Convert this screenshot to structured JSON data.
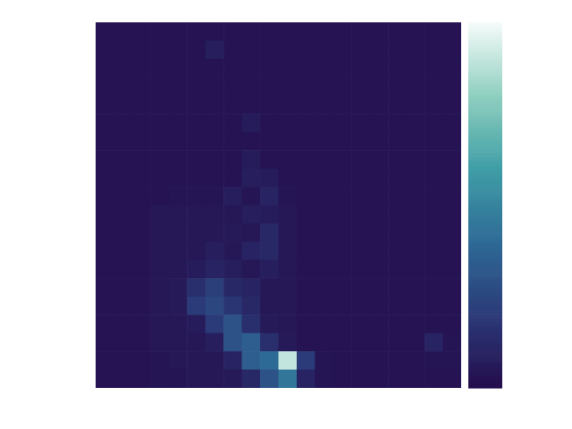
{
  "chart_data": {
    "type": "heatmap",
    "tick_labels": false,
    "xlim": [
      0,
      20
    ],
    "ylim": [
      0,
      20
    ],
    "colorbar": {
      "range": [
        0,
        1
      ]
    },
    "cells": [
      [
        0.03,
        0.03,
        0.03,
        0.03,
        0.03,
        0.03,
        0.03,
        0.03,
        0.03,
        0.03,
        0.03,
        0.03,
        0.03,
        0.03,
        0.03,
        0.03,
        0.03,
        0.03,
        0.03,
        0.03
      ],
      [
        0.03,
        0.03,
        0.03,
        0.03,
        0.03,
        0.03,
        0.08,
        0.03,
        0.03,
        0.03,
        0.03,
        0.03,
        0.03,
        0.03,
        0.03,
        0.03,
        0.03,
        0.03,
        0.03,
        0.03
      ],
      [
        0.03,
        0.03,
        0.03,
        0.03,
        0.03,
        0.03,
        0.03,
        0.03,
        0.03,
        0.03,
        0.03,
        0.03,
        0.03,
        0.03,
        0.03,
        0.03,
        0.03,
        0.03,
        0.03,
        0.03
      ],
      [
        0.03,
        0.03,
        0.03,
        0.03,
        0.03,
        0.03,
        0.03,
        0.03,
        0.03,
        0.03,
        0.03,
        0.03,
        0.03,
        0.03,
        0.03,
        0.03,
        0.03,
        0.03,
        0.03,
        0.03
      ],
      [
        0.03,
        0.03,
        0.03,
        0.03,
        0.03,
        0.03,
        0.03,
        0.03,
        0.03,
        0.03,
        0.03,
        0.03,
        0.03,
        0.03,
        0.03,
        0.03,
        0.03,
        0.03,
        0.03,
        0.03
      ],
      [
        0.03,
        0.03,
        0.03,
        0.03,
        0.03,
        0.03,
        0.03,
        0.03,
        0.07,
        0.03,
        0.03,
        0.03,
        0.03,
        0.03,
        0.03,
        0.03,
        0.03,
        0.03,
        0.03,
        0.03
      ],
      [
        0.03,
        0.03,
        0.03,
        0.03,
        0.03,
        0.03,
        0.03,
        0.03,
        0.03,
        0.03,
        0.03,
        0.03,
        0.03,
        0.03,
        0.03,
        0.03,
        0.03,
        0.03,
        0.03,
        0.03
      ],
      [
        0.03,
        0.03,
        0.03,
        0.03,
        0.03,
        0.03,
        0.03,
        0.03,
        0.07,
        0.03,
        0.03,
        0.03,
        0.03,
        0.03,
        0.03,
        0.03,
        0.03,
        0.03,
        0.03,
        0.03
      ],
      [
        0.03,
        0.03,
        0.03,
        0.03,
        0.03,
        0.03,
        0.03,
        0.03,
        0.08,
        0.07,
        0.03,
        0.03,
        0.03,
        0.03,
        0.03,
        0.03,
        0.03,
        0.03,
        0.03,
        0.03
      ],
      [
        0.03,
        0.03,
        0.03,
        0.03,
        0.04,
        0.04,
        0.04,
        0.08,
        0.04,
        0.1,
        0.04,
        0.03,
        0.03,
        0.03,
        0.03,
        0.03,
        0.03,
        0.03,
        0.03,
        0.03
      ],
      [
        0.03,
        0.03,
        0.03,
        0.05,
        0.05,
        0.05,
        0.05,
        0.05,
        0.08,
        0.07,
        0.05,
        0.03,
        0.03,
        0.03,
        0.03,
        0.03,
        0.03,
        0.03,
        0.03,
        0.03
      ],
      [
        0.03,
        0.03,
        0.03,
        0.05,
        0.05,
        0.05,
        0.05,
        0.06,
        0.05,
        0.12,
        0.05,
        0.03,
        0.03,
        0.03,
        0.03,
        0.03,
        0.03,
        0.03,
        0.03,
        0.03
      ],
      [
        0.03,
        0.03,
        0.03,
        0.05,
        0.05,
        0.05,
        0.08,
        0.05,
        0.1,
        0.12,
        0.05,
        0.03,
        0.03,
        0.03,
        0.03,
        0.03,
        0.03,
        0.03,
        0.03,
        0.03
      ],
      [
        0.03,
        0.03,
        0.03,
        0.05,
        0.05,
        0.07,
        0.1,
        0.08,
        0.05,
        0.08,
        0.05,
        0.03,
        0.03,
        0.03,
        0.03,
        0.03,
        0.03,
        0.03,
        0.03,
        0.03
      ],
      [
        0.03,
        0.03,
        0.03,
        0.05,
        0.06,
        0.15,
        0.22,
        0.12,
        0.1,
        0.05,
        0.05,
        0.03,
        0.03,
        0.03,
        0.03,
        0.03,
        0.03,
        0.03,
        0.03,
        0.03
      ],
      [
        0.03,
        0.03,
        0.03,
        0.05,
        0.06,
        0.2,
        0.25,
        0.18,
        0.12,
        0.05,
        0.05,
        0.03,
        0.03,
        0.03,
        0.03,
        0.03,
        0.03,
        0.03,
        0.03,
        0.03
      ],
      [
        0.03,
        0.03,
        0.03,
        0.05,
        0.05,
        0.07,
        0.2,
        0.3,
        0.15,
        0.06,
        0.05,
        0.03,
        0.03,
        0.03,
        0.03,
        0.03,
        0.03,
        0.03,
        0.03,
        0.03
      ],
      [
        0.03,
        0.03,
        0.03,
        0.05,
        0.05,
        0.05,
        0.08,
        0.3,
        0.35,
        0.15,
        0.06,
        0.03,
        0.03,
        0.03,
        0.03,
        0.03,
        0.03,
        0.03,
        0.1,
        0.04
      ],
      [
        0.03,
        0.03,
        0.03,
        0.04,
        0.05,
        0.05,
        0.05,
        0.1,
        0.35,
        0.4,
        0.9,
        0.2,
        0.04,
        0.03,
        0.03,
        0.03,
        0.03,
        0.03,
        0.04,
        0.04
      ],
      [
        0.03,
        0.03,
        0.03,
        0.04,
        0.04,
        0.05,
        0.05,
        0.06,
        0.12,
        0.3,
        0.45,
        0.1,
        0.04,
        0.03,
        0.03,
        0.03,
        0.03,
        0.03,
        0.03,
        0.03
      ]
    ]
  }
}
